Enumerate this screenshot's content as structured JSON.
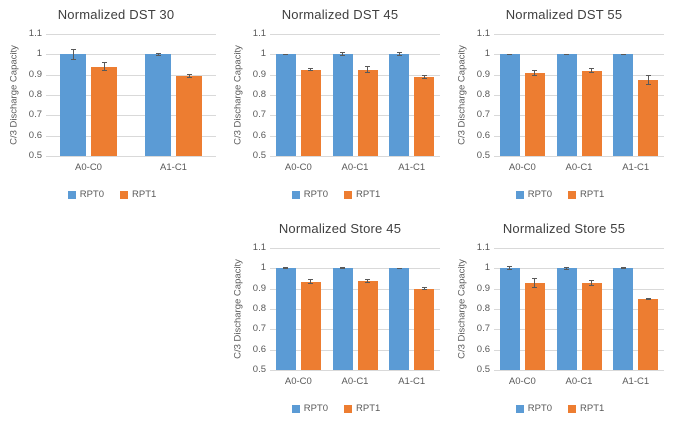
{
  "page": {
    "background": "#ffffff"
  },
  "colors": {
    "series_rpt0": "#5B9BD5",
    "series_rpt1": "#ED7D31",
    "gridline": "#D9D9D9",
    "title_text": "#3F3F3F",
    "axis_text": "#595959",
    "error_bar": "#595959"
  },
  "axis": {
    "ylabel": "C/3 Discharge Capacity",
    "ymin": 0.5,
    "ymax": 1.1,
    "tick_labels_top_to_bottom": [
      "1.1",
      "1",
      "0.9",
      "0.8",
      "0.7",
      "0.6",
      "0.5"
    ]
  },
  "legend": {
    "entries": [
      "RPT0",
      "RPT1"
    ],
    "position": "bottom"
  },
  "chart_data": [
    {
      "type": "bar",
      "title": "Normalized DST 30",
      "categories": [
        "A0-C0",
        "A1-C1"
      ],
      "series": [
        {
          "name": "RPT0",
          "color": "#5B9BD5",
          "values": [
            1.0,
            1.0
          ],
          "errors": [
            0.028,
            0.007
          ]
        },
        {
          "name": "RPT1",
          "color": "#ED7D31",
          "values": [
            0.94,
            0.895
          ],
          "errors": [
            0.02,
            0.01
          ]
        }
      ],
      "xlabel": "",
      "ylabel": "C/3 Discharge Capacity",
      "ylim": [
        0.5,
        1.1
      ],
      "grid": true,
      "legend_position": "bottom"
    },
    {
      "type": "bar",
      "title": "Normalized DST 45",
      "categories": [
        "A0-C0",
        "A0-C1",
        "A1-C1"
      ],
      "series": [
        {
          "name": "RPT0",
          "color": "#5B9BD5",
          "values": [
            1.0,
            1.0,
            1.0
          ],
          "errors": [
            0.003,
            0.01,
            0.01
          ]
        },
        {
          "name": "RPT1",
          "color": "#ED7D31",
          "values": [
            0.925,
            0.925,
            0.89
          ],
          "errors": [
            0.007,
            0.018,
            0.01
          ]
        }
      ],
      "xlabel": "",
      "ylabel": "C/3 Discharge Capacity",
      "ylim": [
        0.5,
        1.1
      ],
      "grid": true,
      "legend_position": "bottom"
    },
    {
      "type": "bar",
      "title": "Normalized DST 55",
      "categories": [
        "A0-C0",
        "A0-C1",
        "A1-C1"
      ],
      "series": [
        {
          "name": "RPT0",
          "color": "#5B9BD5",
          "values": [
            1.0,
            1.0,
            1.0
          ],
          "errors": [
            0.004,
            0.004,
            0.004
          ]
        },
        {
          "name": "RPT1",
          "color": "#ED7D31",
          "values": [
            0.91,
            0.92,
            0.875
          ],
          "errors": [
            0.015,
            0.012,
            0.025
          ]
        }
      ],
      "xlabel": "",
      "ylabel": "C/3 Discharge Capacity",
      "ylim": [
        0.5,
        1.1
      ],
      "grid": true,
      "legend_position": "bottom"
    },
    {
      "type": "bar",
      "title": "Normalized Store 45",
      "categories": [
        "A0-C0",
        "A0-C1",
        "A1-C1"
      ],
      "series": [
        {
          "name": "RPT0",
          "color": "#5B9BD5",
          "values": [
            1.0,
            1.0,
            1.0
          ],
          "errors": [
            0.005,
            0.005,
            0.004
          ]
        },
        {
          "name": "RPT1",
          "color": "#ED7D31",
          "values": [
            0.935,
            0.938,
            0.9
          ],
          "errors": [
            0.012,
            0.012,
            0.008
          ]
        }
      ],
      "xlabel": "",
      "ylabel": "C/3 Discharge Capacity",
      "ylim": [
        0.5,
        1.1
      ],
      "grid": true,
      "legend_position": "bottom"
    },
    {
      "type": "bar",
      "title": "Normalized Store 55",
      "categories": [
        "A0-C0",
        "A0-C1",
        "A1-C1"
      ],
      "series": [
        {
          "name": "RPT0",
          "color": "#5B9BD5",
          "values": [
            1.0,
            1.0,
            1.0
          ],
          "errors": [
            0.01,
            0.008,
            0.005
          ]
        },
        {
          "name": "RPT1",
          "color": "#ED7D31",
          "values": [
            0.93,
            0.93,
            0.85
          ],
          "errors": [
            0.025,
            0.015,
            0.004
          ]
        }
      ],
      "xlabel": "",
      "ylabel": "C/3 Discharge Capacity",
      "ylim": [
        0.5,
        1.1
      ],
      "grid": true,
      "legend_position": "bottom"
    }
  ]
}
